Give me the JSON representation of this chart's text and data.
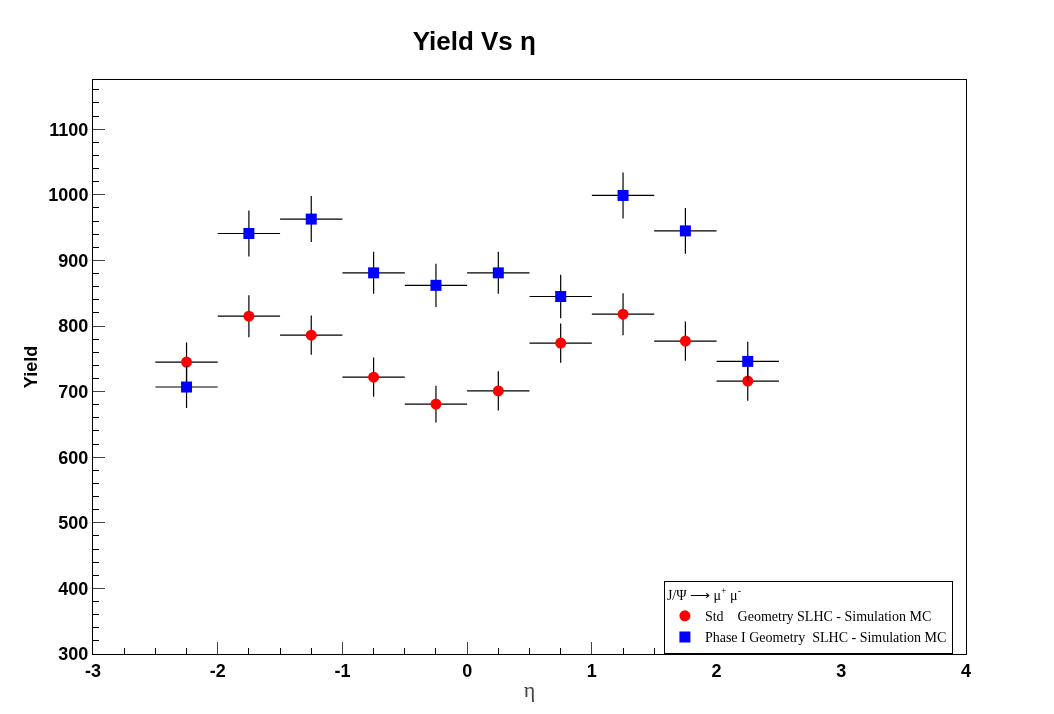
{
  "chart_data": {
    "type": "scatter",
    "title": "Yield Vs η",
    "xlabel": "η",
    "ylabel": "Yield",
    "legend_title": "J/Ψ ⟶ μ$^{+}$ μ$^{-}$",
    "x": [
      -2.25,
      -1.75,
      -1.25,
      -0.75,
      -0.25,
      0.25,
      0.75,
      1.25,
      1.75,
      2.25
    ],
    "series": [
      {
        "name": "Std    Geometry SLHC - Simulation MC",
        "color": "#ff0000",
        "marker": "circle",
        "values": [
          745,
          815,
          786,
          722,
          681,
          701,
          774,
          818,
          777,
          716
        ],
        "errors": [
          30,
          32,
          30,
          30,
          28,
          30,
          30,
          32,
          30,
          30
        ],
        "xerrors": [
          0.25,
          0.25,
          0.25,
          0.25,
          0.25,
          0.25,
          0.25,
          0.25,
          0.25,
          0.25
        ]
      },
      {
        "name": "Phase I Geometry  SLHC - Simulation MC",
        "color": "#0000ff",
        "marker": "square",
        "values": [
          707,
          941,
          963,
          881,
          862,
          881,
          845,
          999,
          945,
          746
        ],
        "errors": [
          32,
          35,
          35,
          32,
          33,
          32,
          33,
          35,
          35,
          30
        ],
        "xerrors": [
          0.25,
          0.25,
          0.25,
          0.25,
          0.25,
          0.25,
          0.25,
          0.25,
          0.25,
          0.25
        ]
      }
    ],
    "xlim": [
      -3,
      4
    ],
    "xticks": [
      -3,
      -2,
      -1,
      0,
      1,
      2,
      3,
      4
    ],
    "ylim": [
      300,
      1175
    ],
    "yticks": [
      300,
      400,
      500,
      600,
      700,
      800,
      900,
      1000,
      1100
    ],
    "grid": false,
    "legend": "bottom right"
  }
}
